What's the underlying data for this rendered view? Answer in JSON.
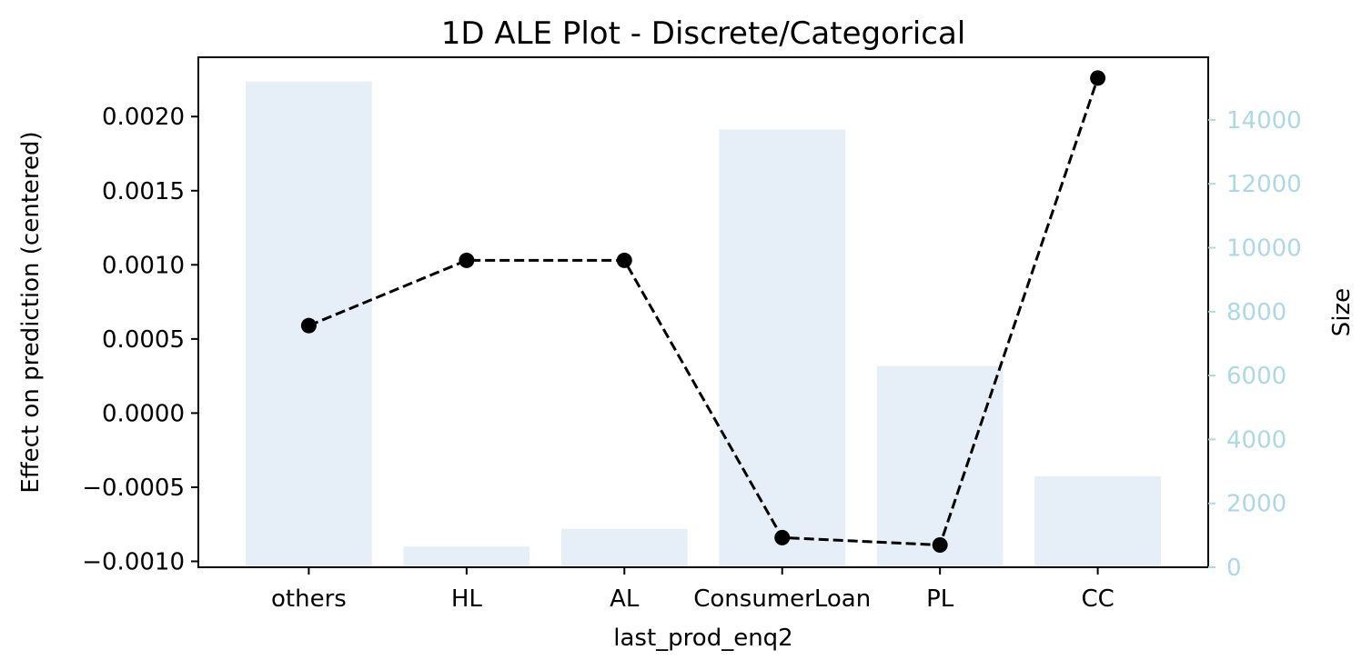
{
  "chart_data": {
    "type": "bar",
    "title": "1D ALE Plot - Discrete/Categorical",
    "xlabel": "last_prod_enq2",
    "ylabel": "Effect on prediction (centered)",
    "ylabel_right": "Size",
    "categories": [
      "others",
      "HL",
      "AL",
      "ConsumerLoan",
      "PL",
      "CC"
    ],
    "series": [
      {
        "name": "Size",
        "type": "bar",
        "axis": "right",
        "color": "#e6eff7",
        "values": [
          15200,
          650,
          1200,
          13700,
          6300,
          2850
        ]
      },
      {
        "name": "Effect",
        "type": "line",
        "axis": "left",
        "color": "#000000",
        "linestyle": "dashed",
        "marker": "circle",
        "values": [
          0.00059,
          0.00103,
          0.00103,
          -0.00084,
          -0.00089,
          0.00226
        ]
      }
    ],
    "ylim": [
      -0.00104,
      0.0024
    ],
    "ylim_right": [
      0,
      15960
    ],
    "yticks": [
      "−0.0010",
      "−0.0005",
      "0.0000",
      "0.0005",
      "0.0010",
      "0.0015",
      "0.0020"
    ],
    "ytick_values": [
      -0.001,
      -0.0005,
      0.0,
      0.0005,
      0.001,
      0.0015,
      0.002
    ],
    "yticks_right": [
      "0",
      "2000",
      "4000",
      "6000",
      "8000",
      "10000",
      "12000",
      "14000"
    ],
    "ytick_values_right": [
      0,
      2000,
      4000,
      6000,
      8000,
      10000,
      12000,
      14000
    ],
    "right_axis_color": "#add8e6",
    "grid": false,
    "legend": "none"
  }
}
